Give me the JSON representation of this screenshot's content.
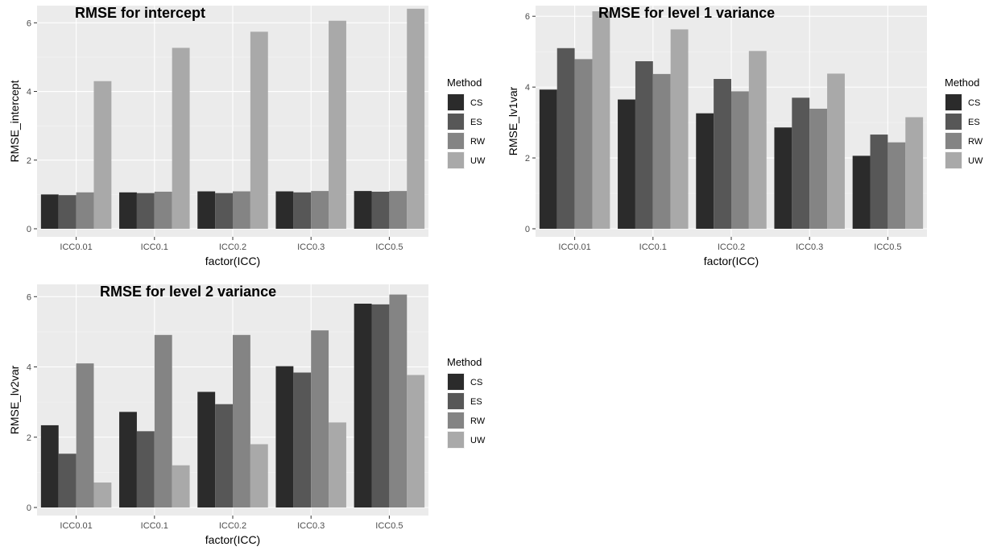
{
  "colors": {
    "panel_bg": "#ebebeb",
    "grid_major": "#ffffff",
    "grid_minor": "#f5f5f5",
    "CS": "#2b2b2b",
    "ES": "#575757",
    "RW": "#848484",
    "UW": "#a9a9a9"
  },
  "chart_data": [
    {
      "type": "bar",
      "title": "RMSE for intercept",
      "xlabel": "factor(ICC)",
      "ylabel": "RMSE_intercept",
      "categories": [
        "ICC0.01",
        "ICC0.1",
        "ICC0.2",
        "ICC0.3",
        "ICC0.5"
      ],
      "yticks": [
        0,
        2,
        4,
        6
      ],
      "ylim": [
        0,
        6.5
      ],
      "legend_title": "Method",
      "legend_position": "right",
      "grid": true,
      "series": [
        {
          "name": "CS",
          "values": [
            1.0,
            1.06,
            1.09,
            1.09,
            1.1
          ]
        },
        {
          "name": "ES",
          "values": [
            0.98,
            1.04,
            1.04,
            1.06,
            1.08
          ]
        },
        {
          "name": "RW",
          "values": [
            1.06,
            1.08,
            1.09,
            1.1,
            1.1
          ]
        },
        {
          "name": "UW",
          "values": [
            4.3,
            5.27,
            5.74,
            6.06,
            6.41
          ]
        }
      ]
    },
    {
      "type": "bar",
      "title": "RMSE for level 1 variance",
      "xlabel": "factor(ICC)",
      "ylabel": "RMSE_lv1var",
      "categories": [
        "ICC0.01",
        "ICC0.1",
        "ICC0.2",
        "ICC0.3",
        "ICC0.5"
      ],
      "yticks": [
        0,
        2,
        4,
        6
      ],
      "ylim": [
        0,
        6.3
      ],
      "legend_title": "Method",
      "legend_position": "right",
      "grid": true,
      "series": [
        {
          "name": "CS",
          "values": [
            3.93,
            3.65,
            3.26,
            2.86,
            2.06
          ]
        },
        {
          "name": "ES",
          "values": [
            5.1,
            4.73,
            4.23,
            3.7,
            2.66
          ]
        },
        {
          "name": "RW",
          "values": [
            4.79,
            4.37,
            3.88,
            3.39,
            2.44
          ]
        },
        {
          "name": "UW",
          "values": [
            6.14,
            5.63,
            5.02,
            4.38,
            3.15
          ]
        }
      ]
    },
    {
      "type": "bar",
      "title": "RMSE for level 2 variance",
      "xlabel": "factor(ICC)",
      "ylabel": "RMSE_lv2var",
      "categories": [
        "ICC0.01",
        "ICC0.1",
        "ICC0.2",
        "ICC0.3",
        "ICC0.5"
      ],
      "yticks": [
        0,
        2,
        4,
        6
      ],
      "ylim": [
        0,
        6.35
      ],
      "legend_title": "Method",
      "legend_position": "right",
      "grid": true,
      "series": [
        {
          "name": "CS",
          "values": [
            2.34,
            2.72,
            3.29,
            4.02,
            5.8
          ]
        },
        {
          "name": "ES",
          "values": [
            1.53,
            2.17,
            2.94,
            3.84,
            5.78
          ]
        },
        {
          "name": "RW",
          "values": [
            4.1,
            4.91,
            4.91,
            5.04,
            6.06
          ]
        },
        {
          "name": "UW",
          "values": [
            0.71,
            1.2,
            1.8,
            2.42,
            3.77
          ]
        }
      ]
    }
  ]
}
